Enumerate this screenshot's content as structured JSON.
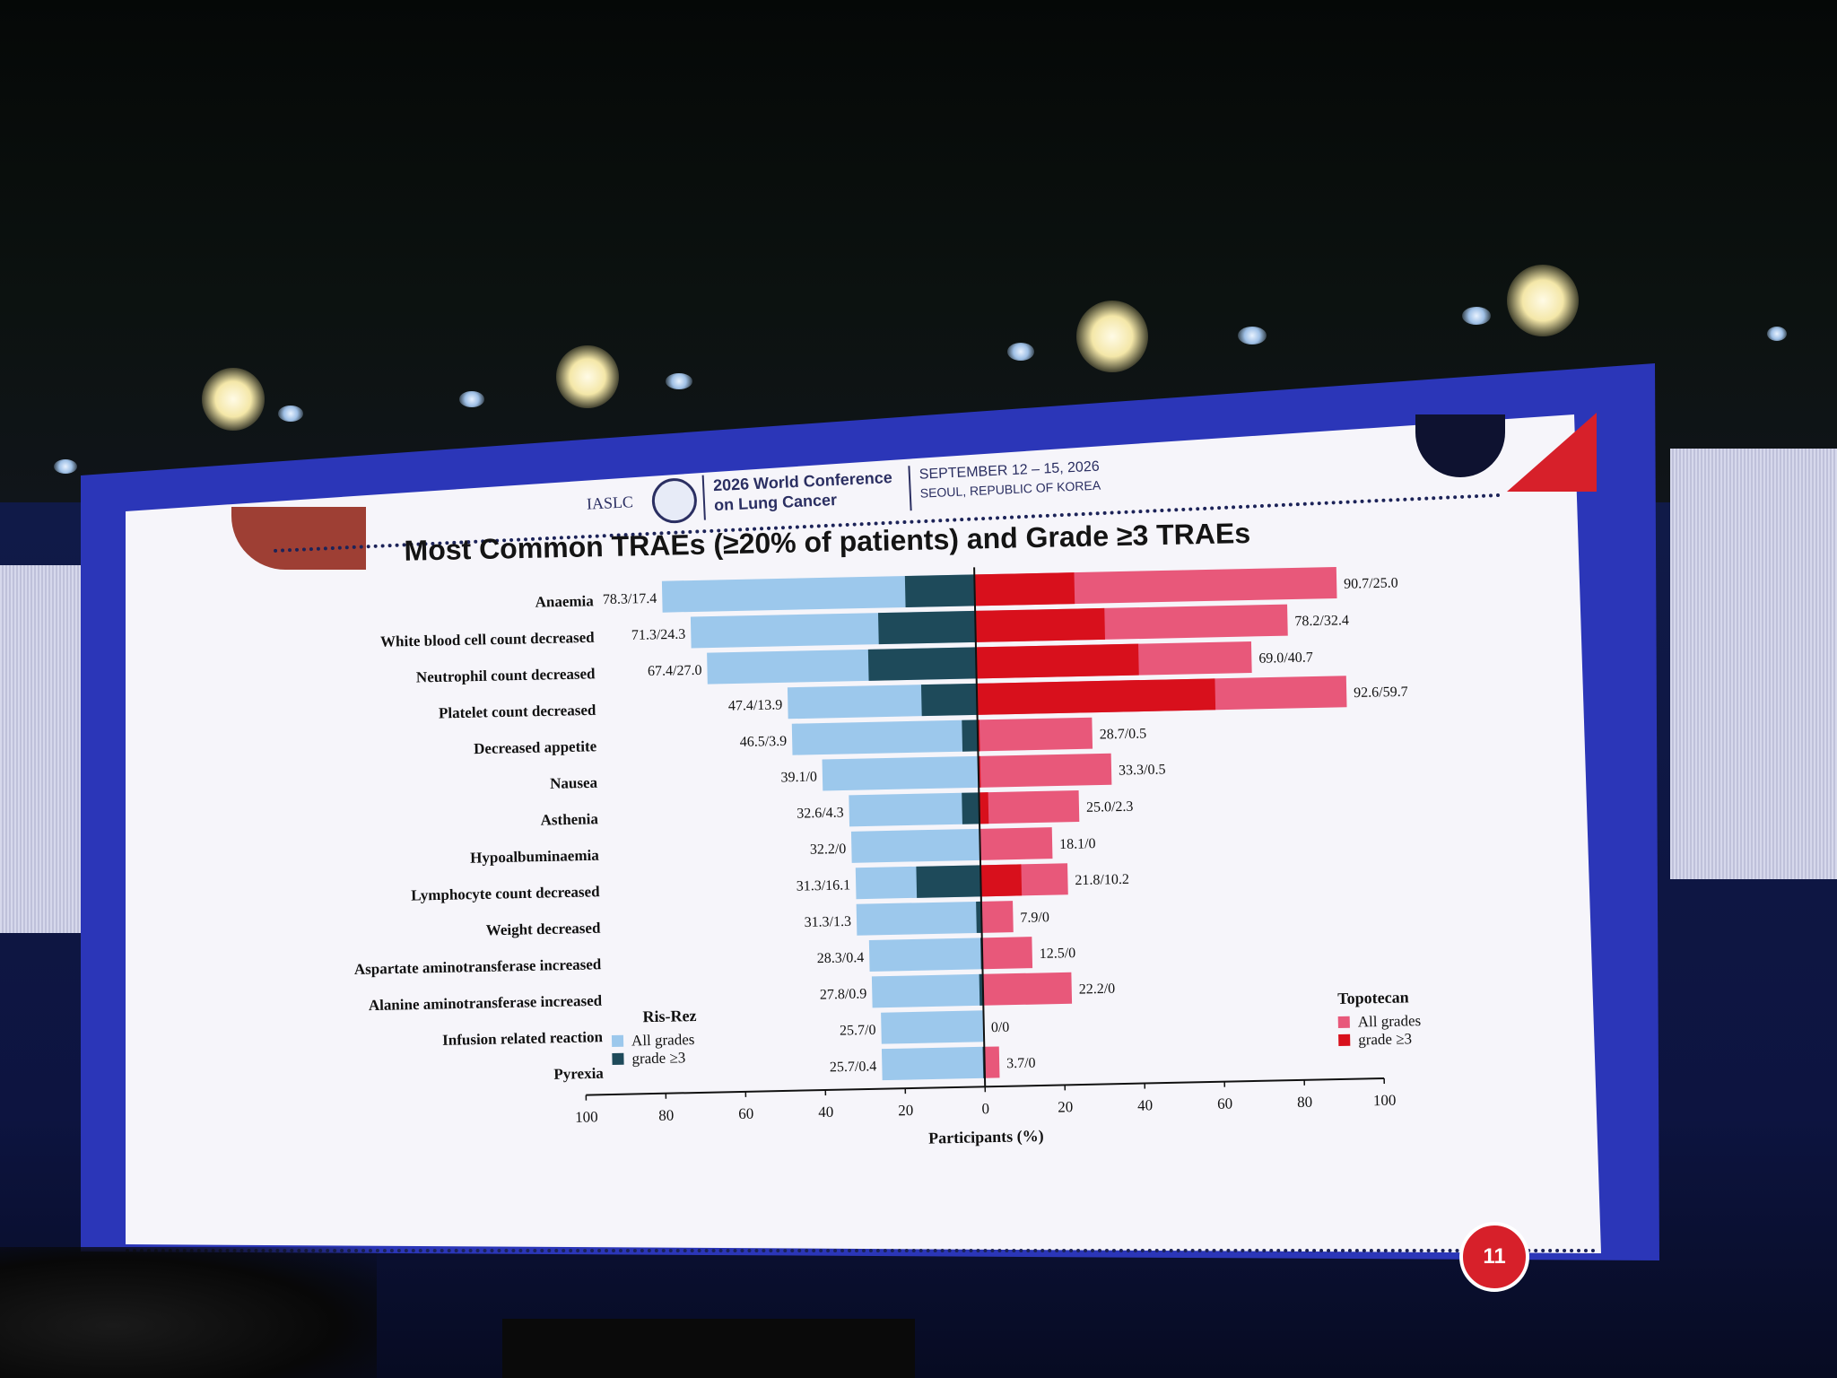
{
  "conference": {
    "org": "IASLC",
    "name_line1": "2026 World Conference",
    "name_line2": "on Lung Cancer",
    "dates": "SEPTEMBER 12 – 15, 2026",
    "location": "SEOUL, REPUBLIC OF KOREA"
  },
  "slide_number": "11",
  "chart_data": {
    "type": "bar",
    "orientation": "horizontal-diverging",
    "title": "Most Common TRAEs (≥20% of patients) and Grade ≥3 TRAEs",
    "xlabel": "Participants (%)",
    "xlim": [
      -100,
      100
    ],
    "x_ticks": [
      "100",
      "80",
      "60",
      "40",
      "20",
      "0",
      "20",
      "40",
      "60",
      "80",
      "100"
    ],
    "categories": [
      "Anaemia",
      "White blood cell count decreased",
      "Neutrophil count decreased",
      "Platelet count decreased",
      "Decreased appetite",
      "Nausea",
      "Asthenia",
      "Hypoalbuminaemia",
      "Lymphocyte count decreased",
      "Weight decreased",
      "Aspartate aminotransferase increased",
      "Alanine aminotransferase increased",
      "Infusion related reaction",
      "Pyrexia"
    ],
    "left_group": {
      "name": "Ris-Rez",
      "all_grades_label": "All grades",
      "grade3_label": "grade ≥3",
      "all_color": "#9cc8ec",
      "grade3_color": "#1e4a5a",
      "all": [
        78.3,
        71.3,
        67.4,
        47.4,
        46.5,
        39.1,
        32.6,
        32.2,
        31.3,
        31.3,
        28.3,
        27.8,
        25.7,
        25.7
      ],
      "grade3": [
        17.4,
        24.3,
        27.0,
        13.9,
        3.9,
        0,
        4.3,
        0,
        16.1,
        1.3,
        0.4,
        0.9,
        0,
        0.4
      ],
      "labels": [
        "78.3/17.4",
        "71.3/24.3",
        "67.4/27.0",
        "47.4/13.9",
        "46.5/3.9",
        "39.1/0",
        "32.6/4.3",
        "32.2/0",
        "31.3/16.1",
        "31.3/1.3",
        "28.3/0.4",
        "27.8/0.9",
        "25.7/0",
        "25.7/0.4"
      ]
    },
    "right_group": {
      "name": "Topotecan",
      "all_grades_label": "All grades",
      "grade3_label": "grade ≥3",
      "all_color": "#e8587a",
      "grade3_color": "#d8101c",
      "all": [
        90.7,
        78.2,
        69.0,
        92.6,
        28.7,
        33.3,
        25.0,
        18.1,
        21.8,
        7.9,
        12.5,
        22.2,
        0,
        3.7
      ],
      "grade3": [
        25.0,
        32.4,
        40.7,
        59.7,
        0.5,
        0.5,
        2.3,
        0,
        10.2,
        0,
        0,
        0,
        0,
        0
      ],
      "labels": [
        "90.7/25.0",
        "78.2/32.4",
        "69.0/40.7",
        "92.6/59.7",
        "28.7/0.5",
        "33.3/0.5",
        "25.0/2.3",
        "18.1/0",
        "21.8/10.2",
        "7.9/0",
        "12.5/0",
        "22.2/0",
        "0/0",
        "3.7/0"
      ]
    }
  }
}
